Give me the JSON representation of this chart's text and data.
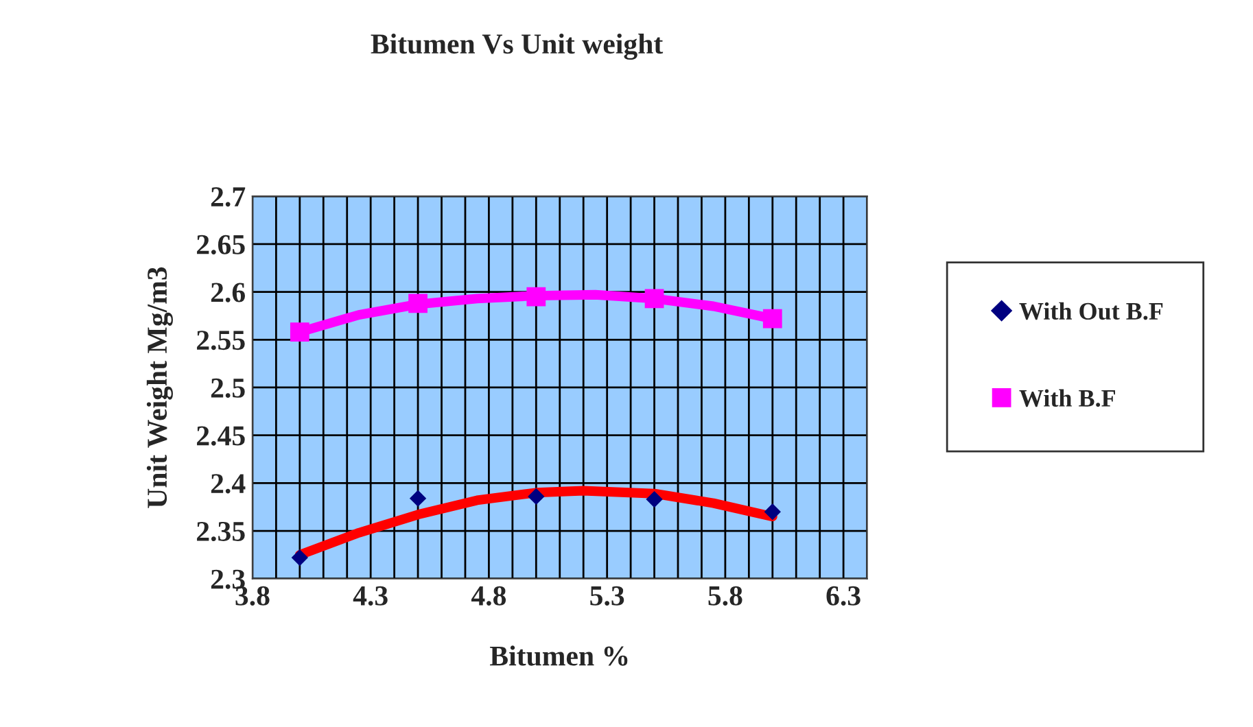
{
  "chart_data": {
    "type": "scatter",
    "title": "Bitumen Vs Unit weight",
    "xlabel": "Bitumen %",
    "ylabel": "Unit Weight Mg/m3",
    "series": [
      {
        "name": "With Out B.F",
        "color": "#000080",
        "marker": "diamond",
        "x": [
          4.0,
          4.5,
          5.0,
          5.5,
          6.0
        ],
        "values": [
          2.322,
          2.384,
          2.386,
          2.383,
          2.37
        ]
      },
      {
        "name": "With B.F",
        "color": "#ff00ff",
        "marker": "square",
        "x": [
          4.0,
          4.5,
          5.0,
          5.5,
          6.0
        ],
        "values": [
          2.558,
          2.588,
          2.595,
          2.593,
          2.572
        ]
      },
      {
        "type": "line",
        "color": "#ff0000",
        "marker": "none",
        "x": [
          4.0,
          4.25,
          4.5,
          4.75,
          5.0,
          5.2,
          5.5,
          5.75,
          6.0
        ],
        "values": [
          2.325,
          2.348,
          2.367,
          2.382,
          2.39,
          2.392,
          2.389,
          2.379,
          2.365
        ]
      },
      {
        "type": "line",
        "color": "#ff00ff",
        "marker": "none",
        "x": [
          4.0,
          4.25,
          4.5,
          4.75,
          5.0,
          5.25,
          5.5,
          5.75,
          6.0
        ],
        "values": [
          2.558,
          2.576,
          2.587,
          2.593,
          2.596,
          2.597,
          2.593,
          2.585,
          2.572
        ]
      }
    ],
    "xlim": [
      3.8,
      6.4
    ],
    "xticks": [
      3.8,
      {
        "value": 3.9,
        "label": null
      },
      {
        "value": 4.0,
        "label": null
      },
      {
        "value": 4.1,
        "label": null
      },
      {
        "value": 4.2,
        "label": null
      },
      4.3,
      {
        "value": 4.4,
        "label": null
      },
      {
        "value": 4.5,
        "label": null
      },
      {
        "value": 4.6,
        "label": null
      },
      {
        "value": 4.7,
        "label": null
      },
      4.8,
      {
        "value": 4.9,
        "label": null
      },
      {
        "value": 5.0,
        "label": null
      },
      {
        "value": 5.1,
        "label": null
      },
      {
        "value": 5.2,
        "label": null
      },
      5.3,
      {
        "value": 5.4,
        "label": null
      },
      {
        "value": 5.5,
        "label": null
      },
      {
        "value": 5.6,
        "label": null
      },
      {
        "value": 5.7,
        "label": null
      },
      5.8,
      {
        "value": 5.9,
        "label": null
      },
      {
        "value": 6.0,
        "label": null
      },
      {
        "value": 6.1,
        "label": null
      },
      {
        "value": 6.2,
        "label": null
      },
      6.3,
      {
        "value": 6.4,
        "label": null
      }
    ],
    "ylim": [
      2.3,
      2.7
    ],
    "yticks": [
      2.3,
      2.35,
      2.4,
      2.45,
      2.5,
      2.55,
      2.6,
      2.65,
      2.7
    ],
    "grid": true,
    "legend": "right"
  }
}
